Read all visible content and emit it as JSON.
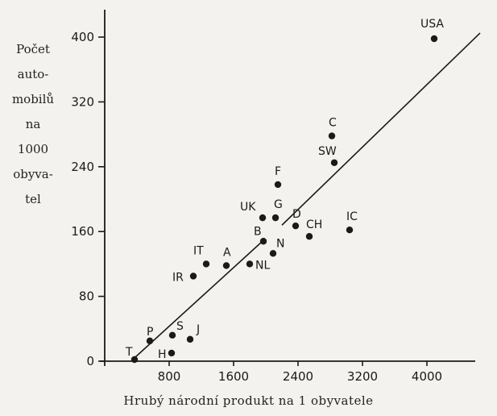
{
  "chart_data": {
    "type": "scatter",
    "title": "",
    "ylabel_lines": [
      "Počet",
      "auto-",
      "mobilů",
      "na",
      "1000",
      "obyva-",
      "tel"
    ],
    "xlabel": "Hrubý národní produkt na 1 obyvatele",
    "xlim": [
      -350,
      4600
    ],
    "ylim": [
      0,
      400
    ],
    "xticks": [
      800,
      1600,
      2400,
      3200,
      4000
    ],
    "xtick_labels": [
      "800",
      "1600",
      "2400",
      "3200",
      "4000"
    ],
    "yticks": [
      0,
      80,
      160,
      240,
      320,
      400
    ],
    "ytick_labels": [
      "0",
      "80",
      "160",
      "240",
      "320",
      "400"
    ],
    "grid": false,
    "points": [
      {
        "label": "T",
        "x": 370,
        "y": 2
      },
      {
        "label": "P",
        "x": 560,
        "y": 25
      },
      {
        "label": "S",
        "x": 840,
        "y": 32
      },
      {
        "label": "H",
        "x": 830,
        "y": 10
      },
      {
        "label": "J",
        "x": 1060,
        "y": 27
      },
      {
        "label": "IR",
        "x": 1100,
        "y": 105
      },
      {
        "label": "IT",
        "x": 1260,
        "y": 120
      },
      {
        "label": "A",
        "x": 1510,
        "y": 118
      },
      {
        "label": "NL",
        "x": 1800,
        "y": 120
      },
      {
        "label": "B",
        "x": 1970,
        "y": 148
      },
      {
        "label": "UK",
        "x": 1960,
        "y": 177
      },
      {
        "label": "N",
        "x": 2090,
        "y": 133
      },
      {
        "label": "G",
        "x": 2120,
        "y": 177
      },
      {
        "label": "F",
        "x": 2150,
        "y": 218
      },
      {
        "label": "D",
        "x": 2370,
        "y": 167
      },
      {
        "label": "CH",
        "x": 2540,
        "y": 154
      },
      {
        "label": "C",
        "x": 2820,
        "y": 278
      },
      {
        "label": "SW",
        "x": 2850,
        "y": 245
      },
      {
        "label": "IC",
        "x": 3040,
        "y": 162
      },
      {
        "label": "USA",
        "x": 4090,
        "y": 398
      }
    ],
    "trend_line": [
      {
        "x": 380,
        "y": 5
      },
      {
        "x": 1980,
        "y": 150
      },
      {
        "x": 4660,
        "y": 405
      }
    ]
  }
}
